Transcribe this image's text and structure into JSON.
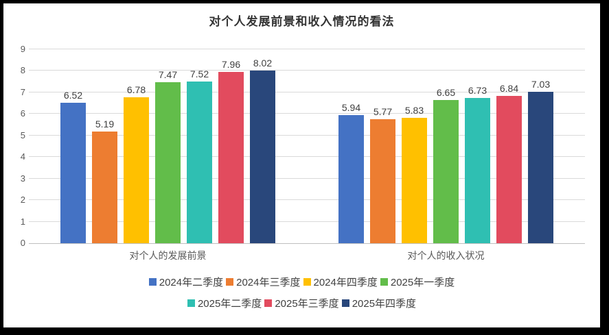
{
  "chart_data": {
    "type": "bar",
    "title": "对个人发展前景和收入情况的看法",
    "categories": [
      "对个人的发展前景",
      "对个人的收入状况"
    ],
    "series": [
      {
        "name": "2024年二季度",
        "color": "#4472C4",
        "values": [
          6.52,
          5.94
        ]
      },
      {
        "name": "2024年三季度",
        "color": "#ED7D31",
        "values": [
          5.19,
          5.77
        ]
      },
      {
        "name": "2024年四季度",
        "color": "#FFC000",
        "values": [
          6.78,
          5.83
        ]
      },
      {
        "name": "2025年一季度",
        "color": "#62BD4A",
        "values": [
          7.47,
          6.65
        ]
      },
      {
        "name": "2025年二季度",
        "color": "#2FBFB2",
        "values": [
          7.52,
          6.73
        ]
      },
      {
        "name": "2025年三季度",
        "color": "#E24B5E",
        "values": [
          7.96,
          6.84
        ]
      },
      {
        "name": "2025年四季度",
        "color": "#29477B",
        "values": [
          8.02,
          7.03
        ]
      }
    ],
    "ylim": [
      0,
      9
    ],
    "yticks": [
      0,
      1,
      2,
      3,
      4,
      5,
      6,
      7,
      8,
      9
    ],
    "grid": true,
    "value_labels": true,
    "value_label_decimals": 2,
    "legend_position": "bottom",
    "legend_rows": [
      4,
      3
    ]
  },
  "colors": {
    "gridline": "#D9D9D9",
    "baseline": "#BFBFBF",
    "tick_label": "#595959",
    "value_label": "#404040",
    "title": "#333333",
    "legend_text": "#404040",
    "background": "#FFFFFF",
    "frame": "#000000"
  }
}
